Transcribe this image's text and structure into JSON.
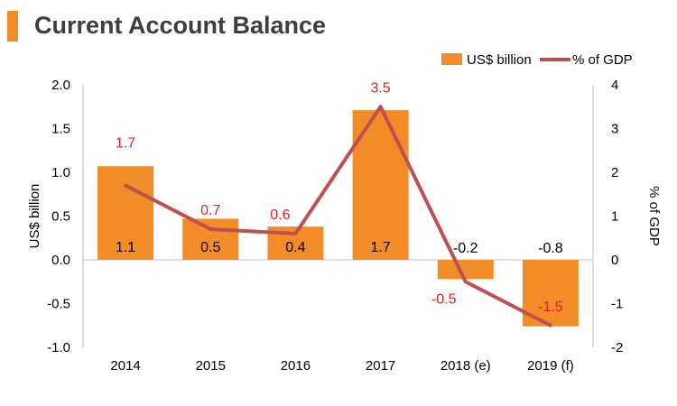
{
  "title": "Current Account Balance",
  "colors": {
    "accent": "#f28c28",
    "bar": "#f28c28",
    "line": "#c0504d",
    "pct_label": "#e02020"
  },
  "chart_data": {
    "type": "bar",
    "categories": [
      "2014",
      "2015",
      "2016",
      "2017",
      "2018 (e)",
      "2019 (f)"
    ],
    "series": [
      {
        "name": "US$ billion",
        "type": "bar",
        "axis": "left",
        "values": [
          1.07,
          0.47,
          0.38,
          1.71,
          -0.22,
          -0.76
        ],
        "labels": [
          "1.1",
          "0.5",
          "0.4",
          "1.7",
          "-0.2",
          "-0.8"
        ]
      },
      {
        "name": "% of GDP",
        "type": "line",
        "axis": "right",
        "values": [
          1.7,
          0.7,
          0.6,
          3.5,
          -0.5,
          -1.5
        ],
        "labels": [
          "1.7",
          "0.7",
          "0.6",
          "3.5",
          "-0.5",
          "-1.5"
        ]
      }
    ],
    "ylabel": "US$ billion",
    "y2label": "% of GDP",
    "ylim": [
      -1.0,
      2.0
    ],
    "y2lim": [
      -2,
      4
    ],
    "yticks": [
      "2.0",
      "1.5",
      "1.0",
      "0.5",
      "0.0",
      "-0.5",
      "-1.0"
    ],
    "y2ticks": [
      "4",
      "3",
      "2",
      "1",
      "0",
      "-1",
      "-2"
    ],
    "legend_position": "top-right",
    "grid": false
  }
}
